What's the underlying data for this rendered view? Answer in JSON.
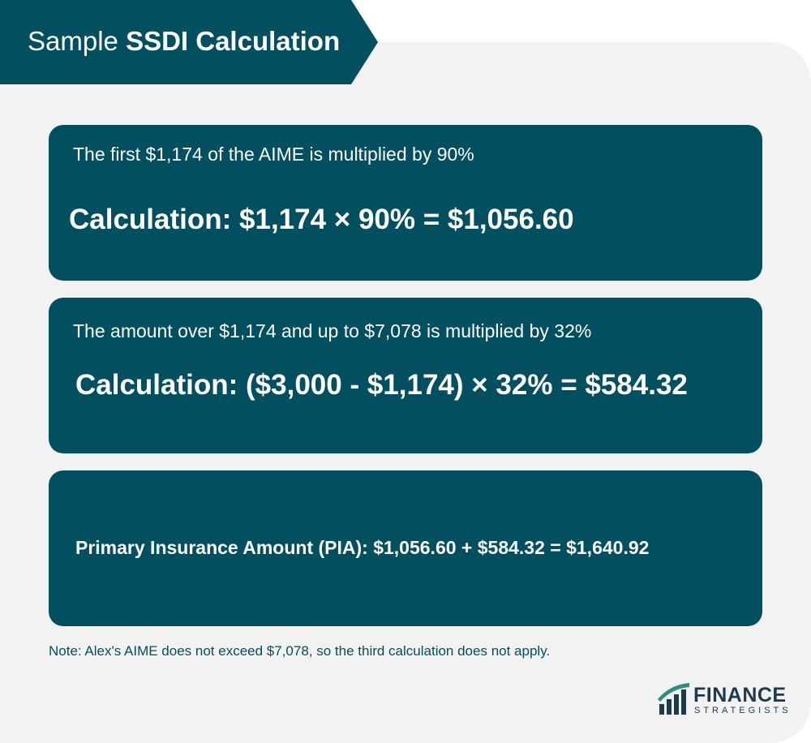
{
  "header": {
    "title_light": "Sample",
    "title_bold": "SSDI Calculation"
  },
  "cards": [
    {
      "description": "The first $1,174 of the AIME is multiplied by 90%",
      "calculation": "Calculation: $1,174 × 90% = $1,056.60"
    },
    {
      "description": "The amount over $1,174 and up to $7,078 is multiplied by 32%",
      "calculation": "Calculation: ($3,000 - $1,174) × 32% = $584.32"
    },
    {
      "result": "Primary Insurance Amount (PIA): $1,056.60 + $584.32 = $1,640.92"
    }
  ],
  "note": "Note: Alex's AIME does not exceed $7,078, so the third calculation does not apply.",
  "logo": {
    "name": "FINANCE",
    "subtitle": "STRATEGISTS",
    "icon": "finance-strategists-logo-icon"
  },
  "colors": {
    "primary": "#014f5f",
    "panel": "#f2f2f2",
    "text_light": "#ffffff",
    "logo_text": "#1f3a4d"
  }
}
